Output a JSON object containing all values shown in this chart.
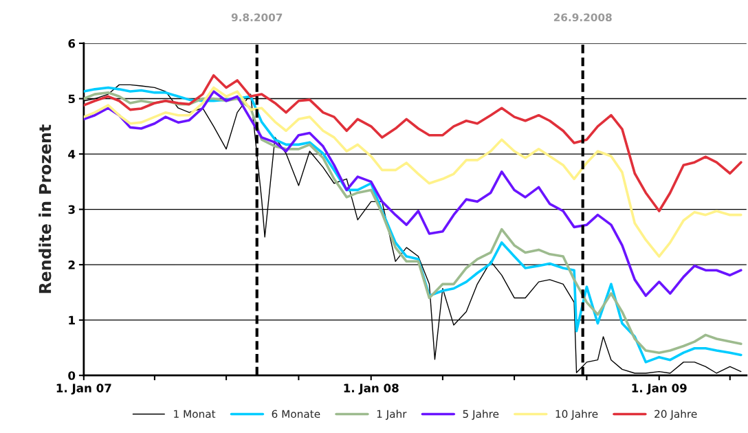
{
  "chart_data": {
    "type": "line",
    "ylabel": "Rendite in Prozent",
    "x": [
      "2007-01-01",
      "2007-01-15",
      "2007-02-01",
      "2007-02-15",
      "2007-03-01",
      "2007-03-15",
      "2007-04-01",
      "2007-04-15",
      "2007-05-01",
      "2007-05-15",
      "2007-06-01",
      "2007-06-15",
      "2007-07-01",
      "2007-07-15",
      "2007-08-01",
      "2007-08-15",
      "2007-09-01",
      "2007-09-15",
      "2007-10-01",
      "2007-10-15",
      "2007-11-01",
      "2007-11-15",
      "2007-12-01",
      "2007-12-15",
      "2008-01-01",
      "2008-01-15",
      "2008-02-01",
      "2008-02-15",
      "2008-03-01",
      "2008-03-15",
      "2008-04-01",
      "2008-04-15",
      "2008-05-01",
      "2008-05-15",
      "2008-06-01",
      "2008-06-15",
      "2008-07-01",
      "2008-07-15",
      "2008-08-01",
      "2008-08-15",
      "2008-09-01",
      "2008-09-15",
      "2008-10-01",
      "2008-10-15",
      "2008-11-01",
      "2008-11-15",
      "2008-12-01",
      "2008-12-15",
      "2009-01-01",
      "2009-01-15",
      "2009-02-01",
      "2009-02-15",
      "2009-03-01",
      "2009-03-15",
      "2009-04-01",
      "2009-04-15"
    ],
    "series": [
      {
        "name": "1 Monat",
        "color": "#000000",
        "x": [
          "2007-01-01",
          "2007-01-15",
          "2007-02-01",
          "2007-02-15",
          "2007-03-01",
          "2007-03-15",
          "2007-04-01",
          "2007-04-15",
          "2007-05-01",
          "2007-05-15",
          "2007-06-01",
          "2007-06-15",
          "2007-07-01",
          "2007-07-15",
          "2007-08-01",
          "2007-08-15",
          "2007-08-19",
          "2007-09-01",
          "2007-09-15",
          "2007-10-01",
          "2007-10-15",
          "2007-11-01",
          "2007-11-15",
          "2007-12-01",
          "2007-12-15",
          "2008-01-01",
          "2008-01-15",
          "2008-02-01",
          "2008-02-15",
          "2008-03-01",
          "2008-03-15",
          "2008-03-22",
          "2008-04-01",
          "2008-04-15",
          "2008-05-01",
          "2008-05-15",
          "2008-06-01",
          "2008-06-15",
          "2008-07-01",
          "2008-07-15",
          "2008-08-01",
          "2008-08-15",
          "2008-09-01",
          "2008-09-15",
          "2008-09-18",
          "2008-10-01",
          "2008-10-15",
          "2008-10-22",
          "2008-11-01",
          "2008-11-15",
          "2008-12-01",
          "2008-12-15",
          "2009-01-01",
          "2009-01-15",
          "2009-02-01",
          "2009-02-15",
          "2009-03-01",
          "2009-03-15",
          "2009-04-01",
          "2009-04-15"
        ],
        "values": [
          4.96,
          5.0,
          5.08,
          5.25,
          5.25,
          5.23,
          5.2,
          5.13,
          4.83,
          4.75,
          4.83,
          4.5,
          4.09,
          4.75,
          5.08,
          3.18,
          2.5,
          4.3,
          4.01,
          3.43,
          4.05,
          3.76,
          3.47,
          3.55,
          2.81,
          3.14,
          3.14,
          2.06,
          2.31,
          2.15,
          1.65,
          0.29,
          1.57,
          0.91,
          1.15,
          1.65,
          2.06,
          1.81,
          1.4,
          1.4,
          1.69,
          1.73,
          1.65,
          1.32,
          0.05,
          0.24,
          0.28,
          0.7,
          0.28,
          0.11,
          0.04,
          0.04,
          0.07,
          0.04,
          0.24,
          0.24,
          0.16,
          0.04,
          0.16,
          0.07
        ]
      },
      {
        "name": "6 Monate",
        "color": "#00ccff",
        "x": [
          "2007-01-01",
          "2007-01-15",
          "2007-02-01",
          "2007-02-15",
          "2007-03-01",
          "2007-03-15",
          "2007-04-01",
          "2007-04-15",
          "2007-05-01",
          "2007-05-15",
          "2007-06-01",
          "2007-06-15",
          "2007-07-01",
          "2007-07-15",
          "2007-08-01",
          "2007-08-15",
          "2007-09-01",
          "2007-09-15",
          "2007-10-01",
          "2007-10-15",
          "2007-11-01",
          "2007-11-15",
          "2007-12-01",
          "2007-12-15",
          "2008-01-01",
          "2008-01-15",
          "2008-02-01",
          "2008-02-15",
          "2008-03-01",
          "2008-03-15",
          "2008-04-01",
          "2008-04-15",
          "2008-05-01",
          "2008-05-15",
          "2008-06-01",
          "2008-06-15",
          "2008-07-01",
          "2008-07-15",
          "2008-08-01",
          "2008-08-15",
          "2008-09-01",
          "2008-09-15",
          "2008-09-18",
          "2008-10-01",
          "2008-10-15",
          "2008-11-01",
          "2008-11-15",
          "2008-12-01",
          "2008-12-15",
          "2009-01-01",
          "2009-01-15",
          "2009-02-01",
          "2009-02-15",
          "2009-03-01",
          "2009-03-15",
          "2009-04-01",
          "2009-04-15"
        ],
        "values": [
          5.13,
          5.17,
          5.2,
          5.17,
          5.13,
          5.15,
          5.11,
          5.11,
          5.04,
          4.98,
          4.96,
          4.96,
          4.98,
          5.0,
          5.04,
          4.58,
          4.26,
          4.17,
          4.17,
          4.21,
          4.01,
          3.71,
          3.35,
          3.35,
          3.47,
          2.97,
          2.4,
          2.15,
          2.1,
          1.44,
          1.53,
          1.57,
          1.69,
          1.85,
          2.02,
          2.4,
          2.15,
          1.94,
          1.98,
          2.02,
          1.94,
          1.9,
          0.8,
          1.6,
          0.94,
          1.65,
          0.94,
          0.7,
          0.24,
          0.33,
          0.28,
          0.41,
          0.49,
          0.49,
          0.45,
          0.41,
          0.37
        ]
      },
      {
        "name": "1 Jahr",
        "color": "#9dbb8e",
        "values": [
          5.0,
          5.08,
          5.11,
          5.04,
          4.92,
          4.96,
          4.92,
          4.96,
          4.9,
          4.9,
          5.0,
          5.0,
          4.96,
          5.0,
          4.83,
          4.26,
          4.14,
          4.09,
          4.09,
          4.17,
          3.93,
          3.55,
          3.22,
          3.3,
          3.35,
          2.93,
          2.31,
          2.06,
          2.06,
          1.4,
          1.65,
          1.65,
          1.94,
          2.1,
          2.22,
          2.64,
          2.35,
          2.22,
          2.27,
          2.19,
          2.15,
          1.73,
          1.32,
          1.1,
          1.48,
          1.15,
          0.66,
          0.45,
          0.41,
          0.45,
          0.53,
          0.61,
          0.73,
          0.66,
          0.61,
          0.57
        ]
      },
      {
        "name": "5 Jahre",
        "color": "#6a14ff",
        "values": [
          4.63,
          4.7,
          4.83,
          4.7,
          4.48,
          4.46,
          4.55,
          4.67,
          4.57,
          4.61,
          4.83,
          5.13,
          4.96,
          5.04,
          4.63,
          4.3,
          4.21,
          4.05,
          4.34,
          4.38,
          4.14,
          3.8,
          3.35,
          3.59,
          3.5,
          3.14,
          2.9,
          2.72,
          2.97,
          2.56,
          2.6,
          2.9,
          3.18,
          3.14,
          3.3,
          3.68,
          3.35,
          3.22,
          3.4,
          3.1,
          2.97,
          2.68,
          2.72,
          2.9,
          2.72,
          2.35,
          1.73,
          1.44,
          1.69,
          1.48,
          1.78,
          1.98,
          1.9,
          1.9,
          1.81,
          1.9
        ]
      },
      {
        "name": "10 Jahre",
        "color": "#fff28a",
        "values": [
          4.67,
          4.75,
          4.88,
          4.7,
          4.55,
          4.57,
          4.67,
          4.75,
          4.7,
          4.7,
          4.92,
          5.2,
          5.04,
          5.13,
          4.8,
          4.83,
          4.58,
          4.42,
          4.63,
          4.67,
          4.42,
          4.3,
          4.05,
          4.17,
          3.96,
          3.71,
          3.71,
          3.84,
          3.64,
          3.47,
          3.55,
          3.64,
          3.89,
          3.89,
          4.05,
          4.26,
          4.05,
          3.93,
          4.09,
          3.96,
          3.8,
          3.55,
          3.84,
          4.05,
          3.96,
          3.67,
          2.75,
          2.45,
          2.15,
          2.4,
          2.8,
          2.95,
          2.9,
          2.97,
          2.9,
          2.9
        ]
      },
      {
        "name": "20 Jahre",
        "color": "#e0303a",
        "values": [
          4.88,
          4.96,
          5.04,
          4.96,
          4.8,
          4.82,
          4.92,
          4.96,
          4.92,
          4.9,
          5.08,
          5.42,
          5.2,
          5.33,
          5.04,
          5.08,
          4.92,
          4.75,
          4.96,
          4.98,
          4.75,
          4.67,
          4.42,
          4.63,
          4.5,
          4.3,
          4.46,
          4.63,
          4.46,
          4.34,
          4.34,
          4.5,
          4.6,
          4.55,
          4.7,
          4.83,
          4.67,
          4.6,
          4.7,
          4.6,
          4.42,
          4.2,
          4.26,
          4.5,
          4.7,
          4.45,
          3.65,
          3.3,
          2.97,
          3.3,
          3.8,
          3.85,
          3.95,
          3.85,
          3.65,
          3.85
        ]
      }
    ],
    "xlim": [
      "2007-01-01",
      "2009-04-22"
    ],
    "xticks": [
      {
        "value": "2007-01-01",
        "label": "1. Jan 07"
      },
      {
        "value": "2007-04-01",
        "label": null
      },
      {
        "value": "2007-07-01",
        "label": null
      },
      {
        "value": "2007-10-01",
        "label": null
      },
      {
        "value": "2008-01-01",
        "label": "1. Jan 08"
      },
      {
        "value": "2008-04-01",
        "label": null
      },
      {
        "value": "2008-07-01",
        "label": null
      },
      {
        "value": "2008-10-01",
        "label": null
      },
      {
        "value": "2009-01-01",
        "label": "1. Jan 09"
      },
      {
        "value": "2009-04-01",
        "label": null
      }
    ],
    "ylim": [
      0,
      6
    ],
    "yticks": [
      0,
      1,
      2,
      3,
      4,
      5,
      6
    ],
    "ref_lines": [
      {
        "axis": "x",
        "value": "2007-08-09",
        "label": "9.8.2007",
        "color": "#000000",
        "line_style": "dashed"
      },
      {
        "axis": "x",
        "value": "2008-09-26",
        "label": "26.9.2008",
        "color": "#000000",
        "line_style": "dashed"
      }
    ],
    "grid": "y",
    "legend": "bottom",
    "marker": "none",
    "line_style": "solid"
  }
}
